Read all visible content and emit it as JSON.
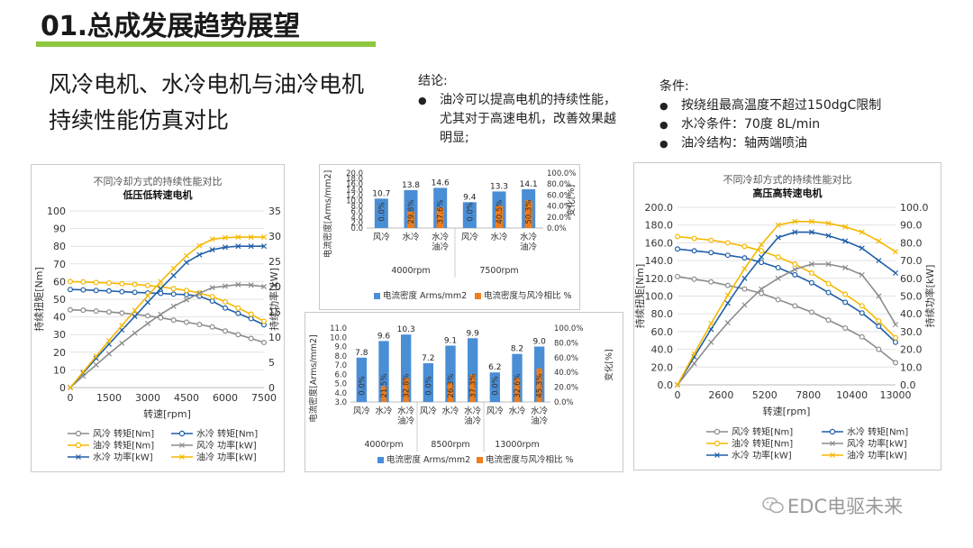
{
  "header": {
    "title": "01.总成发展趋势展望"
  },
  "subtitle": {
    "line1": "风冷电机、水冷电机与油冷电机",
    "line2": "持续性能仿真对比"
  },
  "conclusion": {
    "title": "结论:",
    "items": [
      "油冷可以提高电机的持续性能，尤其对于高速电机，改善效果越明显;"
    ]
  },
  "conditions": {
    "title": "条件:",
    "items": [
      "按绕组最高温度不超过150dgC限制",
      "水冷条件：70度 8L/min",
      "油冷结构：轴两端喷油"
    ]
  },
  "watermark": "EDC电驱未来",
  "colors": {
    "air": "#8c8c8c",
    "water": "#1f5fa8",
    "oil": "#f5b800",
    "bar_blue": "#4a8ed6",
    "bar_orange": "#ee7d1c"
  },
  "chart_data": [
    {
      "type": "line",
      "title": "不同冷却方式的持续性能对比",
      "subtitle": "低压低转速电机",
      "xlabel": "转速[rpm]",
      "ylabel": "持续扭矩[Nm]",
      "y2label": "持续功率[kW]",
      "xticks": [
        "0",
        "1500",
        "3000",
        "4500",
        "6000",
        "7500"
      ],
      "xlim": [
        0,
        7500
      ],
      "ylim": [
        0,
        100
      ],
      "y2lim": [
        0,
        35
      ],
      "yticks": [
        "0",
        "10",
        "20",
        "30",
        "40",
        "50",
        "60",
        "70",
        "80",
        "90",
        "100"
      ],
      "y2ticks": [
        "0",
        "5",
        "10",
        "15",
        "20",
        "25",
        "30",
        "35"
      ],
      "x": [
        0,
        500,
        1000,
        1500,
        2000,
        2500,
        3000,
        3500,
        4000,
        4500,
        5000,
        5500,
        6000,
        6500,
        7000,
        7500
      ],
      "series": [
        {
          "name": "风冷 转矩[Nm]",
          "axis": "left",
          "marker": "o",
          "color": "#8c8c8c",
          "values": [
            44,
            43.8,
            43.3,
            42.8,
            42.2,
            41.5,
            40.6,
            39.5,
            38.2,
            37,
            35.7,
            34.3,
            32,
            30,
            27.8,
            25.5
          ]
        },
        {
          "name": "水冷 转矩[Nm]",
          "axis": "left",
          "marker": "o",
          "color": "#1f5fa8",
          "values": [
            55.5,
            55.3,
            55,
            54.7,
            54.3,
            53.9,
            53.6,
            53.3,
            52.9,
            52.6,
            51.8,
            49,
            45,
            42,
            39,
            35.5
          ]
        },
        {
          "name": "油冷 转矩[Nm]",
          "axis": "left",
          "marker": "o",
          "color": "#f5b800",
          "values": [
            60,
            59.8,
            59.5,
            59.2,
            58.8,
            58.4,
            57.8,
            57,
            56,
            55,
            53.5,
            51.5,
            48.5,
            45,
            41.5,
            37.5
          ]
        },
        {
          "name": "风冷 功率[kW]",
          "axis": "right",
          "marker": "x",
          "color": "#8c8c8c",
          "values": [
            0,
            2.3,
            4.5,
            6.7,
            8.8,
            10.8,
            12.7,
            14.5,
            16.1,
            17.4,
            18.7,
            19.8,
            20.1,
            20.4,
            20.3,
            20
          ]
        },
        {
          "name": "水冷 功率[kW]",
          "axis": "right",
          "marker": "x",
          "color": "#1f5fa8",
          "values": [
            0,
            2.9,
            5.8,
            8.6,
            11.4,
            14.1,
            16.9,
            19.6,
            22.2,
            24.8,
            26.3,
            27.3,
            27.8,
            28,
            28,
            28
          ]
        },
        {
          "name": "油冷 功率[kW]",
          "axis": "right",
          "marker": "x",
          "color": "#f5b800",
          "values": [
            0,
            3.1,
            6.2,
            9.3,
            12.3,
            15.3,
            18.2,
            21,
            23.6,
            26.1,
            28.1,
            29.4,
            29.7,
            29.8,
            29.8,
            29.8
          ]
        }
      ]
    },
    {
      "type": "bar",
      "ylabel": "电流密度[Arms/mm2]",
      "y2label": "变化[%]",
      "ylim": [
        0,
        20
      ],
      "y2lim": [
        0,
        100
      ],
      "yticks": [
        "0.0",
        "2.0",
        "4.0",
        "6.0",
        "8.0",
        "10.0",
        "12.0",
        "14.0",
        "16.0",
        "18.0",
        "20.0"
      ],
      "y2ticks": [
        "0.0%",
        "20.0%",
        "40.0%",
        "60.0%",
        "80.0%",
        "100.0%"
      ],
      "categories": [
        "风冷",
        "水冷",
        "水冷油冷",
        "风冷",
        "水冷",
        "水冷油冷"
      ],
      "groups": [
        {
          "label": "4000rpm",
          "count": 3
        },
        {
          "label": "7500rpm",
          "count": 3
        }
      ],
      "series": [
        {
          "name": "电流密度 Arms/mm2",
          "values": [
            10.7,
            13.8,
            14.6,
            9.4,
            13.3,
            14.1
          ],
          "labels": [
            "10.7",
            "13.8",
            "14.6",
            "9.4",
            "13.3",
            "14.1"
          ]
        },
        {
          "name": "电流密度与风冷相比 %",
          "values": [
            0,
            29.8,
            37.6,
            0,
            40.5,
            50.3
          ],
          "labels": [
            "0.0%",
            "29.8%",
            "37.6%",
            "0.0%",
            "40.5%",
            "50.3%"
          ]
        }
      ]
    },
    {
      "type": "bar",
      "ylabel": "电流密度[Arms/mm2]",
      "y2label": "变化[%]",
      "ylim": [
        3,
        11
      ],
      "y2lim": [
        0,
        100
      ],
      "yticks": [
        "3.0",
        "4.0",
        "5.0",
        "6.0",
        "7.0",
        "8.0",
        "9.0",
        "10.0",
        "11.0"
      ],
      "y2ticks": [
        "0.0%",
        "20.0%",
        "40.0%",
        "60.0%",
        "80.0%",
        "100.0%"
      ],
      "categories": [
        "风冷",
        "水冷",
        "水冷油冷",
        "风冷",
        "水冷",
        "水冷油冷",
        "风冷",
        "水冷",
        "水冷油冷"
      ],
      "groups": [
        {
          "label": "4000rpm",
          "count": 3
        },
        {
          "label": "8500rpm",
          "count": 3
        },
        {
          "label": "13000rpm",
          "count": 3
        }
      ],
      "series": [
        {
          "name": "电流密度 Arms/mm2",
          "values": [
            7.8,
            9.6,
            10.3,
            7.2,
            9.1,
            9.9,
            6.2,
            8.2,
            9.0
          ],
          "labels": [
            "7.8",
            "9.6",
            "10.3",
            "7.2",
            "9.1",
            "9.9",
            "6.2",
            "8.2",
            "9.0"
          ]
        },
        {
          "name": "电流密度与风冷相比 %",
          "values": [
            0,
            21.5,
            32.8,
            0,
            26.3,
            37.3,
            0,
            32.6,
            45.3
          ],
          "labels": [
            "0.0%",
            "21.5%",
            "32.8%",
            "0.0%",
            "26.3%",
            "37.3%",
            "0.0%",
            "32.6%",
            "45.3%"
          ]
        }
      ]
    },
    {
      "type": "line",
      "title": "不同冷却方式的持续性能对比",
      "subtitle": "高压高转速电机",
      "xlabel": "转速[rpm]",
      "ylabel": "持续扭矩[Nm]",
      "y2label": "持续功率[kW]",
      "xticks": [
        "0",
        "2600",
        "5200",
        "7800",
        "10400",
        "13000"
      ],
      "xlim": [
        0,
        13000
      ],
      "ylim": [
        0,
        200
      ],
      "y2lim": [
        0,
        100
      ],
      "yticks": [
        "0.0",
        "20.0",
        "40.0",
        "60.0",
        "80.0",
        "100.0",
        "120.0",
        "140.0",
        "160.0",
        "180.0",
        "200.0"
      ],
      "y2ticks": [
        "0.0",
        "10.0",
        "20.0",
        "30.0",
        "40.0",
        "50.0",
        "60.0",
        "70.0",
        "80.0",
        "90.0",
        "100.0"
      ],
      "x": [
        0,
        1000,
        2000,
        3000,
        4000,
        5000,
        6000,
        7000,
        8000,
        9000,
        10000,
        11000,
        12000,
        13000
      ],
      "series": [
        {
          "name": "风冷 转矩[Nm]",
          "axis": "left",
          "marker": "o",
          "color": "#8c8c8c",
          "values": [
            122,
            119,
            116,
            112,
            108,
            103,
            96,
            89,
            82,
            73,
            64,
            54,
            40,
            25
          ]
        },
        {
          "name": "水冷 转矩[Nm]",
          "axis": "left",
          "marker": "o",
          "color": "#1f5fa8",
          "values": [
            153,
            151,
            149,
            146,
            143,
            138,
            132,
            124,
            115,
            104,
            93,
            81,
            66,
            48
          ]
        },
        {
          "name": "油冷 转矩[Nm]",
          "axis": "left",
          "marker": "o",
          "color": "#f5b800",
          "values": [
            167,
            165,
            163,
            160,
            156,
            151,
            144,
            136,
            126,
            114,
            102,
            89,
            72,
            53
          ]
        },
        {
          "name": "风冷 功率[kW]",
          "axis": "right",
          "marker": "x",
          "color": "#8c8c8c",
          "values": [
            0,
            12,
            24,
            35,
            45,
            54,
            60,
            65,
            68,
            68,
            66,
            62,
            50,
            34
          ]
        },
        {
          "name": "水冷 功率[kW]",
          "axis": "right",
          "marker": "x",
          "color": "#1f5fa8",
          "values": [
            0,
            15.8,
            31.3,
            46,
            60,
            72,
            83,
            86,
            86,
            84,
            81,
            77,
            70,
            63
          ]
        },
        {
          "name": "油冷 功率[kW]",
          "axis": "right",
          "marker": "x",
          "color": "#f5b800",
          "values": [
            0,
            17.5,
            34.5,
            50.5,
            65.5,
            79,
            90,
            92,
            92,
            91,
            89,
            86,
            81,
            75
          ]
        }
      ]
    }
  ]
}
